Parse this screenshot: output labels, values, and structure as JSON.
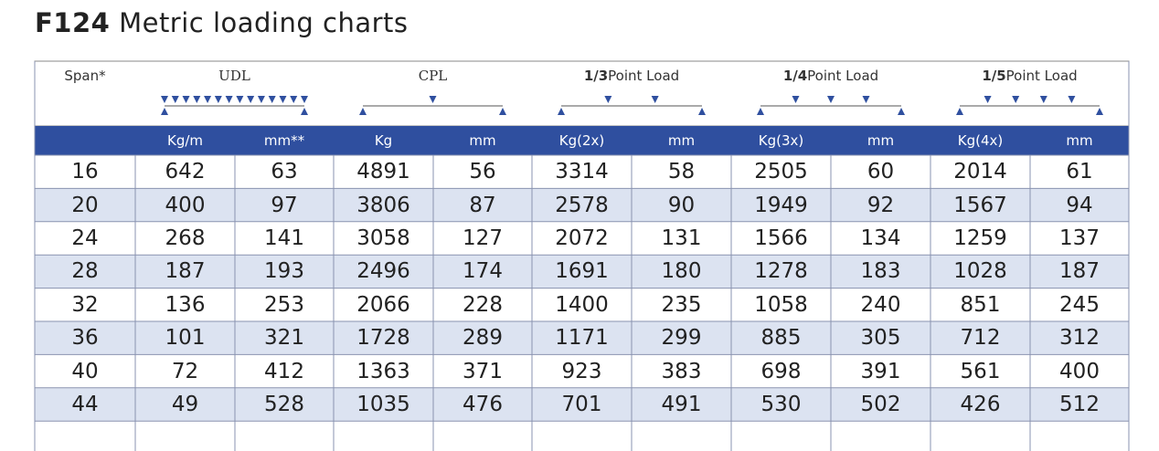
{
  "title": {
    "code": "F124",
    "text": "Metric loading charts"
  },
  "table": {
    "groups": [
      {
        "text": "Span*"
      },
      {
        "text": "UDL"
      },
      {
        "text": "CPL"
      },
      {
        "fraction": "1/3",
        "text": "Point Load"
      },
      {
        "fraction": "1/4",
        "text": "Point Load"
      },
      {
        "fraction": "1/5",
        "text": "Point Load"
      }
    ],
    "units": [
      "Kg/m",
      "mm**",
      "Kg",
      "mm",
      "Kg(2x)",
      "mm",
      "Kg(3x)",
      "mm",
      "Kg(4x)",
      "mm"
    ],
    "rows": [
      [
        16,
        642,
        63,
        4891,
        56,
        3314,
        58,
        2505,
        60,
        2014,
        61
      ],
      [
        20,
        400,
        97,
        3806,
        87,
        2578,
        90,
        1949,
        92,
        1567,
        94
      ],
      [
        24,
        268,
        141,
        3058,
        127,
        2072,
        131,
        1566,
        134,
        1259,
        137
      ],
      [
        28,
        187,
        193,
        2496,
        174,
        1691,
        180,
        1278,
        183,
        1028,
        187
      ],
      [
        32,
        136,
        253,
        2066,
        228,
        1400,
        235,
        1058,
        240,
        851,
        245
      ],
      [
        36,
        101,
        321,
        1728,
        289,
        1171,
        299,
        885,
        305,
        712,
        312
      ],
      [
        40,
        72,
        412,
        1363,
        371,
        923,
        383,
        698,
        391,
        561,
        400
      ],
      [
        44,
        49,
        528,
        1035,
        476,
        701,
        491,
        530,
        502,
        426,
        512
      ]
    ]
  }
}
